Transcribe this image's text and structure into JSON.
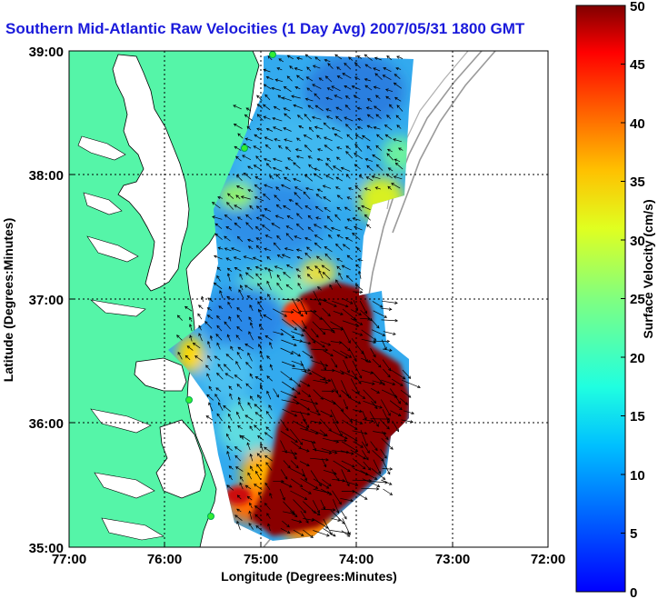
{
  "title": "Southern Mid-Atlantic Raw Velocities (1 Day Avg) 2007/05/31 1800 GMT",
  "xaxis": {
    "label": "Longitude (Degrees:Minutes)",
    "ticks": [
      "77:00",
      "76:00",
      "75:00",
      "74:00",
      "73:00",
      "72:00"
    ],
    "range": [
      -77,
      -72
    ]
  },
  "yaxis": {
    "label": "Latitude (Degrees:Minutes)",
    "ticks": [
      "39:00",
      "38:00",
      "37:00",
      "36:00",
      "35:00"
    ],
    "range": [
      35,
      39
    ]
  },
  "colorbar": {
    "label": "Surface Velocity (cm/s)",
    "ticks": [
      "50",
      "45",
      "40",
      "35",
      "30",
      "25",
      "20",
      "15",
      "10",
      "5",
      "0"
    ],
    "range": [
      0,
      50
    ]
  },
  "colors": {
    "land": "#55f5a8",
    "title": "#1a1adb"
  }
}
